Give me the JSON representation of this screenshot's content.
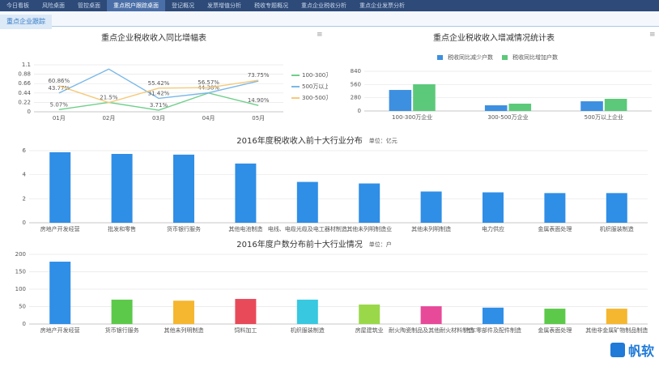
{
  "nav": {
    "tabs": [
      "今日看板",
      "风险桌面",
      "管控桌面",
      "重点税户跟踪桌面",
      "登记概况",
      "发票增值分析",
      "税收专题概况",
      "重点企业税收分析",
      "重点企业发票分析"
    ],
    "active": 3
  },
  "section_title": "重点企业跟踪",
  "logo": "帆软",
  "chart_data": [
    {
      "type": "line",
      "title": "重点企业税收收入同比增幅表",
      "categories": [
        "01月",
        "02月",
        "03月",
        "04月",
        "05月"
      ],
      "ylim": [
        0,
        1.1
      ],
      "yticks": [
        0,
        0.22,
        0.44,
        0.66,
        0.88,
        1.1
      ],
      "grid": true,
      "series": [
        {
          "name": "100-300万",
          "color": "#6fcf8a",
          "values": [
            0.0507,
            0.22,
            0.0371,
            0.44,
            0.149
          ],
          "value_labels": [
            "5.07%",
            null,
            "3.71%",
            null,
            "14.90%"
          ]
        },
        {
          "name": "500万以上",
          "color": "#7ab8e8",
          "values": [
            0.4377,
            1.0,
            0.3142,
            0.4438,
            0.72
          ],
          "value_labels": [
            "43.77%",
            null,
            "31.42%",
            "44.38%",
            null
          ]
        },
        {
          "name": "300-500万",
          "color": "#f5c97a",
          "values": [
            0.6086,
            0.215,
            0.5542,
            0.5657,
            0.7375
          ],
          "value_labels": [
            "60.86%",
            "21.5%",
            "55.42%",
            "56.57%",
            "73.75%"
          ]
        }
      ]
    },
    {
      "type": "grouped_bar",
      "title": "重点企业税收收入增减情况统计表",
      "categories": [
        "100-300万企业",
        "300-500万企业",
        "500万以上企业"
      ],
      "ylim": [
        0,
        840
      ],
      "yticks": [
        0,
        280,
        560,
        840
      ],
      "grid": true,
      "series": [
        {
          "name": "税收同比减少户数",
          "color": "#3d8fe0",
          "values": [
            445,
            120,
            205
          ]
        },
        {
          "name": "税收同比增加户数",
          "color": "#5cc97a",
          "values": [
            565,
            155,
            257
          ]
        }
      ]
    },
    {
      "type": "bar",
      "title": "2016年度税收收入前十大行业分布",
      "unit": "单位：亿元",
      "categories": [
        "房地产开发经营",
        "批发和零售",
        "货币银行服务",
        "其他电池制造",
        "电线、电缆光缆及电工器材制造",
        "其他未列明制造业",
        "其他未列明制造",
        "电力供应",
        "金属表面处理",
        "机织服装制造"
      ],
      "values": [
        5.87,
        5.73,
        5.67,
        4.93,
        3.4,
        3.27,
        2.6,
        2.53,
        2.47,
        2.47
      ],
      "color": "#2f8ee6",
      "ylim": [
        0,
        6
      ],
      "yticks": [
        0,
        2,
        4,
        6
      ],
      "grid": true
    },
    {
      "type": "bar",
      "title": "2016年度户数分布前十大行业情况",
      "unit": "单位：户",
      "categories": [
        "房地产开发经营",
        "货币银行服务",
        "其他未列明制造",
        "饲料加工",
        "机织服装制造",
        "房屋建筑业",
        "耐火陶瓷制品及其他耐火材料制造",
        "汽车零部件及配件制造",
        "金属表面处理",
        "其他非金属矿物制品制造"
      ],
      "values": [
        179,
        70,
        67,
        72,
        70,
        56,
        51,
        47,
        44,
        44
      ],
      "colors": [
        "#2f8ee6",
        "#5cc94a",
        "#f5b730",
        "#e84a5a",
        "#38c8e0",
        "#9ad84a",
        "#e84a9a",
        "#2f8ee6",
        "#5cc94a",
        "#f5b730"
      ],
      "ylim": [
        0,
        200
      ],
      "yticks": [
        0,
        50,
        100,
        150,
        200
      ],
      "grid": true
    }
  ]
}
